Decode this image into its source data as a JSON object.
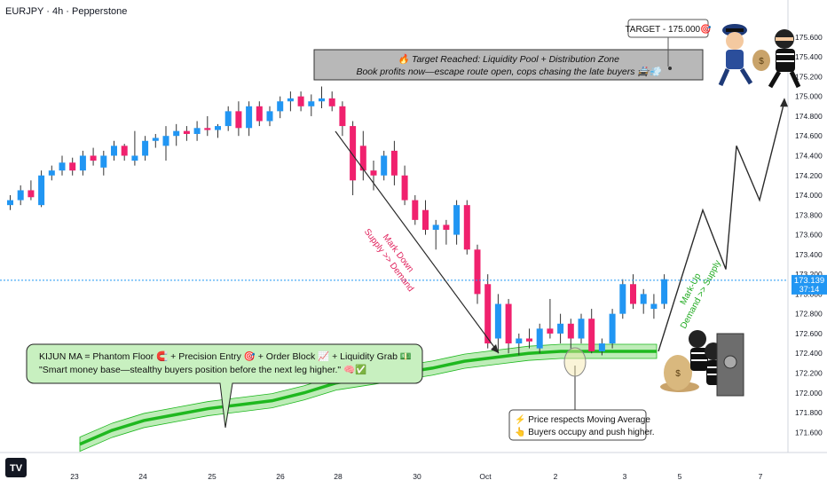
{
  "header": {
    "title": "EURJPY · 4h · Pepperstone"
  },
  "colors": {
    "bull": "#2196f3",
    "bear": "#f0216e",
    "ma": "#1fb81f",
    "ma_band": "#a8e6a0",
    "price_line": "#2196f3",
    "projection": "#2a2a2a",
    "markdown_text": "#e0245e",
    "markup_text": "#1faa1f"
  },
  "price_box": {
    "price": "173.139",
    "countdown": "37:14"
  },
  "target_tag": {
    "label": "TARGET - 175.000🎯"
  },
  "banner": {
    "line1": "🔥 Target Reached: Liquidity Pool + Distribution Zone",
    "line2": "Book profits now—escape route open, cops chasing the late buyers 🚔💨"
  },
  "annotations": {
    "markdown": [
      "Mark Down",
      "Supply >> Demand"
    ],
    "markup": [
      "Mark-Up",
      "Demand >> Supply"
    ],
    "kijun_line1": "KIJUN MA = Phantom Floor 🧲 + Precision Entry 🎯 + Order Block 📈 + Liquidity Grab 💵",
    "kijun_line2": "\"Smart money base—stealthy buyers position before the next leg higher.\" 🧠✅",
    "ma_note_line1": "⚡ Price respects Moving Average",
    "ma_note_line2": "👆 Buyers occupy and push higher."
  },
  "icons": [
    "cop-icon",
    "thief-with-money-bag-icon",
    "burglars-at-safe-icon"
  ],
  "chart_data": {
    "type": "candlestick",
    "symbol": "EURJPY",
    "timeframe": "4h",
    "broker": "Pepperstone",
    "ylim": [
      171.45,
      175.85
    ],
    "y_ticks": [
      "175.600",
      "175.400",
      "175.200",
      "175.000",
      "174.800",
      "174.600",
      "174.400",
      "174.200",
      "174.000",
      "173.800",
      "173.600",
      "173.400",
      "173.200",
      "173.000",
      "172.800",
      "172.600",
      "172.400",
      "172.200",
      "172.000",
      "171.800",
      "171.600"
    ],
    "x_ticks": [
      "23",
      "24",
      "25",
      "26",
      "28",
      "30",
      "Oct",
      "2",
      "3",
      "5",
      "7"
    ],
    "current_price": 173.139,
    "candles": [
      [
        173.9,
        174.0,
        173.85,
        173.95
      ],
      [
        173.95,
        174.1,
        173.9,
        174.05
      ],
      [
        174.05,
        174.15,
        173.95,
        173.98
      ],
      [
        173.9,
        174.25,
        173.88,
        174.2
      ],
      [
        174.2,
        174.3,
        174.15,
        174.25
      ],
      [
        174.25,
        174.4,
        174.2,
        174.33
      ],
      [
        174.33,
        174.38,
        174.2,
        174.25
      ],
      [
        174.25,
        174.45,
        174.2,
        174.4
      ],
      [
        174.4,
        174.48,
        174.3,
        174.35
      ],
      [
        174.28,
        174.45,
        174.2,
        174.4
      ],
      [
        174.4,
        174.55,
        174.35,
        174.5
      ],
      [
        174.5,
        174.52,
        174.35,
        174.4
      ],
      [
        174.35,
        174.65,
        174.3,
        174.4
      ],
      [
        174.4,
        174.6,
        174.35,
        174.55
      ],
      [
        174.55,
        174.62,
        174.48,
        174.58
      ],
      [
        174.5,
        174.7,
        174.35,
        174.6
      ],
      [
        174.6,
        174.72,
        174.5,
        174.65
      ],
      [
        174.65,
        174.7,
        174.55,
        174.62
      ],
      [
        174.62,
        174.75,
        174.55,
        174.68
      ],
      [
        174.68,
        174.8,
        174.6,
        174.66
      ],
      [
        174.66,
        174.72,
        174.58,
        174.7
      ],
      [
        174.7,
        174.9,
        174.65,
        174.85
      ],
      [
        174.85,
        174.95,
        174.6,
        174.68
      ],
      [
        174.68,
        174.95,
        174.6,
        174.9
      ],
      [
        174.9,
        174.95,
        174.7,
        174.75
      ],
      [
        174.75,
        174.9,
        174.7,
        174.85
      ],
      [
        174.85,
        175.0,
        174.78,
        174.95
      ],
      [
        174.95,
        175.05,
        174.85,
        174.98
      ],
      [
        175.0,
        175.05,
        174.85,
        174.9
      ],
      [
        174.9,
        175.02,
        174.8,
        174.95
      ],
      [
        174.95,
        175.1,
        174.88,
        174.98
      ],
      [
        174.98,
        175.05,
        174.85,
        174.9
      ],
      [
        174.9,
        174.95,
        174.6,
        174.7
      ],
      [
        174.7,
        174.75,
        174.0,
        174.15
      ],
      [
        174.5,
        174.65,
        174.15,
        174.25
      ],
      [
        174.25,
        174.35,
        174.05,
        174.2
      ],
      [
        174.2,
        174.45,
        174.15,
        174.4
      ],
      [
        174.45,
        174.55,
        174.1,
        174.2
      ],
      [
        174.2,
        174.3,
        173.9,
        173.95
      ],
      [
        173.95,
        174.0,
        173.7,
        173.75
      ],
      [
        173.85,
        173.95,
        173.6,
        173.65
      ],
      [
        173.65,
        173.75,
        173.45,
        173.7
      ],
      [
        173.7,
        173.75,
        173.5,
        173.65
      ],
      [
        173.6,
        173.95,
        173.5,
        173.9
      ],
      [
        173.9,
        173.95,
        173.4,
        173.45
      ],
      [
        173.45,
        173.5,
        172.9,
        173.0
      ],
      [
        173.1,
        173.2,
        172.45,
        172.5
      ],
      [
        172.55,
        173.0,
        172.4,
        172.9
      ],
      [
        172.9,
        172.95,
        172.4,
        172.5
      ],
      [
        172.5,
        172.6,
        172.38,
        172.55
      ],
      [
        172.55,
        172.65,
        172.45,
        172.52
      ],
      [
        172.45,
        172.7,
        172.4,
        172.65
      ],
      [
        172.65,
        172.95,
        172.55,
        172.6
      ],
      [
        172.6,
        172.8,
        172.5,
        172.7
      ],
      [
        172.7,
        172.75,
        172.45,
        172.55
      ],
      [
        172.55,
        172.8,
        172.5,
        172.75
      ],
      [
        172.75,
        172.85,
        172.4,
        172.42
      ],
      [
        172.42,
        172.55,
        172.38,
        172.5
      ],
      [
        172.5,
        172.85,
        172.45,
        172.8
      ],
      [
        172.8,
        173.15,
        172.75,
        173.1
      ],
      [
        173.1,
        173.2,
        172.85,
        172.9
      ],
      [
        172.9,
        173.05,
        172.8,
        173.0
      ],
      [
        172.85,
        173.0,
        172.75,
        172.9
      ],
      [
        172.9,
        173.2,
        172.85,
        173.15
      ]
    ],
    "moving_average": [
      171.48,
      171.62,
      171.72,
      171.78,
      171.84,
      171.88,
      171.92,
      172.0,
      172.1,
      172.15,
      172.2,
      172.25,
      172.32,
      172.36,
      172.4,
      172.42,
      172.42,
      172.42,
      172.42
    ],
    "projection": [
      172.42,
      173.85,
      173.25,
      174.5,
      173.95,
      174.95
    ],
    "target": 175.0
  }
}
